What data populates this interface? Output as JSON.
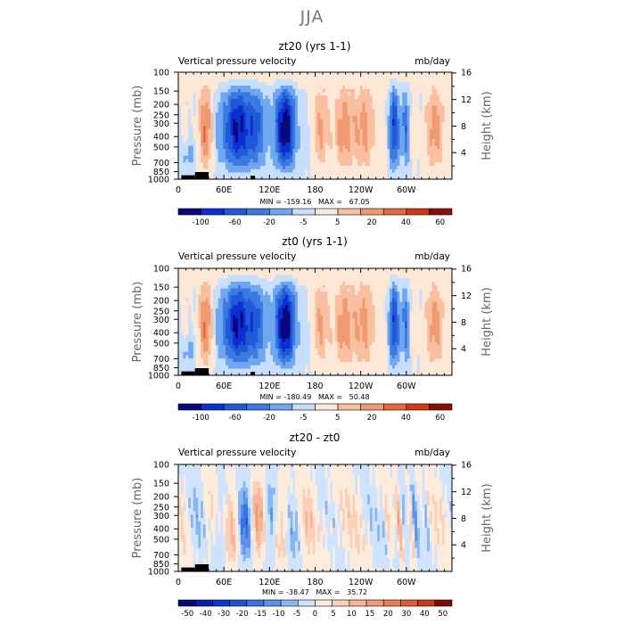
{
  "figure": {
    "title": "JJA"
  },
  "colors": {
    "map12": [
      "#08087f",
      "#0b2fd0",
      "#1f5bd8",
      "#3a7be2",
      "#6fa6ef",
      "#c7defc",
      "#fde8d8",
      "#f8c0a0",
      "#f09a72",
      "#e8683c",
      "#cf3a14",
      "#8a0e06"
    ],
    "map16": [
      "#060a70",
      "#0a1fb0",
      "#0f35d0",
      "#1f52d8",
      "#3a72e0",
      "#5a92ea",
      "#87b6f4",
      "#cfe3fc",
      "#fdebdc",
      "#fad0b8",
      "#f6b596",
      "#f29a78",
      "#ec7a55",
      "#e35a33",
      "#c73a14",
      "#7e0c05"
    ]
  },
  "chart_data": [
    {
      "type": "heatmap",
      "id": "p1",
      "title": "zt20 (yrs 1-1)",
      "left_label": "Vertical pressure velocity",
      "right_label": "mb/day",
      "ylabel": "Pressure (mb)",
      "ylabel_right": "Height (km)",
      "xlabel": "",
      "x_tick_labels": [
        "0",
        "60E",
        "120E",
        "180",
        "120W",
        "60W"
      ],
      "x_tick_lon": [
        0,
        60,
        120,
        180,
        240,
        300
      ],
      "xlim": [
        0,
        360
      ],
      "y_tick_labels": [
        "100",
        "150",
        "200",
        "250",
        "300",
        "400",
        "500",
        "700",
        "850",
        "1000"
      ],
      "y_tick_values": [
        100,
        150,
        200,
        250,
        300,
        400,
        500,
        700,
        850,
        1000
      ],
      "ylim": [
        1000,
        100
      ],
      "height_tick_labels": [
        "4",
        "8",
        "12",
        "16"
      ],
      "height_tick_values": [
        4,
        8,
        12,
        16
      ],
      "stats_text": "MIN = -159.16   MAX =   67.05",
      "min": -159.16,
      "max": 67.05,
      "mode": "field",
      "colorbar_labels": [
        "-100",
        "-60",
        "-20",
        "-5",
        "5",
        "20",
        "40",
        "60"
      ],
      "colorbar_bins": 12,
      "colorbar_scale": "map12"
    },
    {
      "type": "heatmap",
      "id": "p2",
      "title": "zt0 (yrs 1-1)",
      "left_label": "Vertical pressure velocity",
      "right_label": "mb/day",
      "ylabel": "Pressure (mb)",
      "ylabel_right": "Height (km)",
      "xlabel": "",
      "x_tick_labels": [
        "0",
        "60E",
        "120E",
        "180",
        "120W",
        "60W"
      ],
      "x_tick_lon": [
        0,
        60,
        120,
        180,
        240,
        300
      ],
      "xlim": [
        0,
        360
      ],
      "y_tick_labels": [
        "100",
        "150",
        "200",
        "250",
        "300",
        "400",
        "500",
        "700",
        "850",
        "1000"
      ],
      "y_tick_values": [
        100,
        150,
        200,
        250,
        300,
        400,
        500,
        700,
        850,
        1000
      ],
      "ylim": [
        1000,
        100
      ],
      "height_tick_labels": [
        "4",
        "8",
        "12",
        "16"
      ],
      "height_tick_values": [
        4,
        8,
        12,
        16
      ],
      "stats_text": "MIN = -180.49   MAX =   50.48",
      "min": -180.49,
      "max": 50.48,
      "mode": "field",
      "colorbar_labels": [
        "-100",
        "-60",
        "-20",
        "-5",
        "5",
        "20",
        "40",
        "60"
      ],
      "colorbar_bins": 12,
      "colorbar_scale": "map12"
    },
    {
      "type": "heatmap",
      "id": "p3",
      "title": "zt20 - zt0",
      "left_label": "Vertical pressure velocity",
      "right_label": "mb/day",
      "ylabel": "Pressure (mb)",
      "ylabel_right": "Height (km)",
      "xlabel": "",
      "x_tick_labels": [
        "0",
        "60E",
        "120E",
        "180",
        "120W",
        "60W"
      ],
      "x_tick_lon": [
        0,
        60,
        120,
        180,
        240,
        300
      ],
      "xlim": [
        0,
        360
      ],
      "y_tick_labels": [
        "100",
        "150",
        "200",
        "250",
        "300",
        "400",
        "500",
        "700",
        "850",
        "1000"
      ],
      "y_tick_values": [
        100,
        150,
        200,
        250,
        300,
        400,
        500,
        700,
        850,
        1000
      ],
      "ylim": [
        1000,
        100
      ],
      "height_tick_labels": [
        "4",
        "8",
        "12",
        "16"
      ],
      "height_tick_values": [
        4,
        8,
        12,
        16
      ],
      "stats_text": "MIN = -38.47   MAX =   35.72",
      "min": -38.47,
      "max": 35.72,
      "mode": "diff",
      "colorbar_labels": [
        "-50",
        "-40",
        "-30",
        "-20",
        "-15",
        "-10",
        "-5",
        "0",
        "5",
        "10",
        "15",
        "20",
        "30",
        "40",
        "50"
      ],
      "colorbar_bins": 16,
      "colorbar_scale": "map16"
    }
  ]
}
